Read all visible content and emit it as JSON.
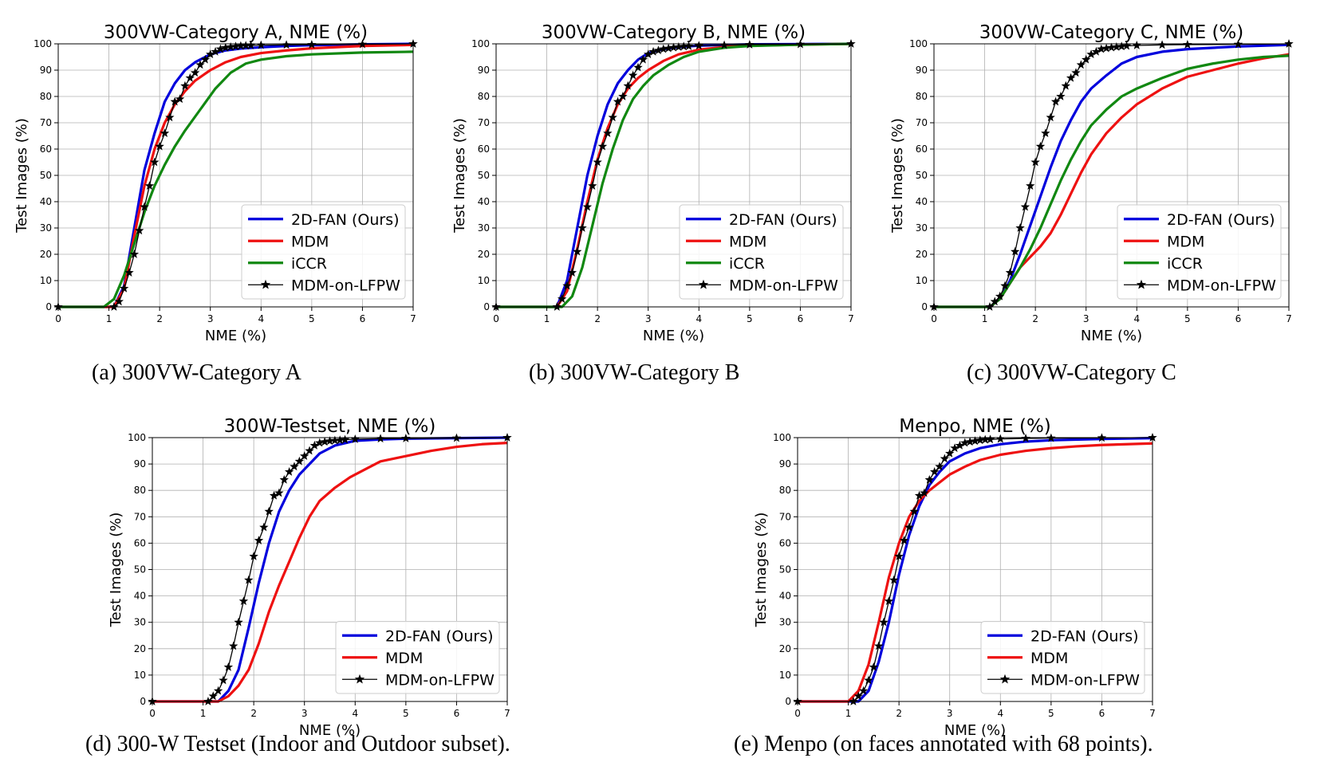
{
  "chart_data": [
    {
      "type": "line",
      "title": "300VW-Category A, NME (%)",
      "xlabel": "NME (%)",
      "ylabel": "Test Images (%)",
      "xlim": [
        0,
        7
      ],
      "ylim": [
        0,
        100
      ],
      "xticks": [
        0,
        1,
        2,
        3,
        4,
        5,
        6,
        7
      ],
      "yticks": [
        0,
        10,
        20,
        30,
        40,
        50,
        60,
        70,
        80,
        90,
        100
      ],
      "grid": true,
      "legend": "lower-right",
      "caption": "(a) 300VW-Category A",
      "series": [
        {
          "name": "2D-FAN (Ours)",
          "color": "#0000dd",
          "marker": "none",
          "x": [
            0,
            1.1,
            1.3,
            1.5,
            1.7,
            1.9,
            2.1,
            2.3,
            2.5,
            2.7,
            3.0,
            3.3,
            3.6,
            4.0,
            4.5,
            5.0,
            6.0,
            7.0
          ],
          "y": [
            0,
            0,
            8,
            30,
            52,
            66,
            78,
            85,
            90,
            93,
            96,
            97.5,
            98.2,
            98.7,
            99.2,
            99.5,
            99.8,
            100
          ]
        },
        {
          "name": "MDM",
          "color": "#ee1111",
          "marker": "none",
          "x": [
            0,
            1.1,
            1.3,
            1.5,
            1.7,
            1.9,
            2.1,
            2.3,
            2.5,
            2.7,
            3.0,
            3.3,
            3.6,
            4.0,
            4.5,
            5.0,
            6.0,
            7.0
          ],
          "y": [
            0,
            0,
            7,
            27,
            46,
            60,
            70,
            77,
            82,
            86,
            90,
            93,
            95,
            96.5,
            97.5,
            98.3,
            99.2,
            99.6
          ]
        },
        {
          "name": "iCCR",
          "color": "#118811",
          "marker": "none",
          "x": [
            0,
            0.9,
            1.1,
            1.3,
            1.5,
            1.7,
            1.9,
            2.1,
            2.3,
            2.5,
            2.8,
            3.1,
            3.4,
            3.7,
            4.0,
            4.5,
            5.0,
            6.0,
            7.0
          ],
          "y": [
            0,
            0,
            3,
            12,
            24,
            36,
            46,
            54,
            61,
            67,
            75,
            83,
            89,
            92.5,
            94,
            95.3,
            96,
            96.7,
            97
          ]
        },
        {
          "name": "MDM-on-LFPW",
          "color": "#000000",
          "marker": "star",
          "x": [
            0,
            1.1,
            1.2,
            1.3,
            1.4,
            1.5,
            1.6,
            1.7,
            1.8,
            1.9,
            2.0,
            2.1,
            2.2,
            2.3,
            2.4,
            2.5,
            2.6,
            2.7,
            2.8,
            2.9,
            3.0,
            3.1,
            3.2,
            3.3,
            3.4,
            3.5,
            3.6,
            3.7,
            3.8,
            4.0,
            4.5,
            5.0,
            6.0,
            7.0
          ],
          "y": [
            0,
            0,
            2,
            7,
            13,
            20,
            29,
            38,
            46,
            55,
            61,
            66,
            72,
            78,
            79,
            84,
            87,
            89,
            92,
            94,
            96,
            97,
            98,
            98.5,
            98.8,
            99,
            99.2,
            99.3,
            99.4,
            99.5,
            99.6,
            99.7,
            99.8,
            100
          ]
        }
      ]
    },
    {
      "type": "line",
      "title": "300VW-Category B, NME (%)",
      "xlabel": "NME (%)",
      "ylabel": "Test Images (%)",
      "xlim": [
        0,
        7
      ],
      "ylim": [
        0,
        100
      ],
      "xticks": [
        0,
        1,
        2,
        3,
        4,
        5,
        6,
        7
      ],
      "yticks": [
        0,
        10,
        20,
        30,
        40,
        50,
        60,
        70,
        80,
        90,
        100
      ],
      "grid": true,
      "legend": "lower-right",
      "caption": "(b) 300VW-Category B",
      "series": [
        {
          "name": "2D-FAN (Ours)",
          "color": "#0000dd",
          "marker": "none",
          "x": [
            0,
            1.2,
            1.4,
            1.6,
            1.8,
            2.0,
            2.2,
            2.4,
            2.6,
            2.8,
            3.0,
            3.3,
            3.6,
            4.0,
            4.5,
            5.0,
            6.0,
            7.0
          ],
          "y": [
            0,
            0,
            10,
            30,
            50,
            65,
            77,
            85,
            90,
            94,
            96.5,
            98,
            98.8,
            99.3,
            99.6,
            99.8,
            99.9,
            100
          ]
        },
        {
          "name": "MDM",
          "color": "#ee1111",
          "marker": "none",
          "x": [
            0,
            1.2,
            1.4,
            1.6,
            1.8,
            2.0,
            2.2,
            2.4,
            2.6,
            2.8,
            3.0,
            3.3,
            3.6,
            4.0,
            4.5,
            5.0,
            6.0,
            7.0
          ],
          "y": [
            0,
            0,
            6,
            22,
            40,
            56,
            68,
            77,
            83,
            87,
            90,
            93.5,
            96,
            97.8,
            98.8,
            99.3,
            99.7,
            100
          ]
        },
        {
          "name": "iCCR",
          "color": "#118811",
          "marker": "none",
          "x": [
            0,
            1.3,
            1.5,
            1.7,
            1.9,
            2.1,
            2.3,
            2.5,
            2.7,
            2.9,
            3.1,
            3.4,
            3.7,
            4.0,
            4.5,
            5.0,
            6.0,
            7.0
          ],
          "y": [
            0,
            0,
            4,
            15,
            31,
            47,
            60,
            71,
            79,
            84,
            88,
            92,
            95,
            97,
            98.5,
            99.2,
            99.7,
            100
          ]
        },
        {
          "name": "MDM-on-LFPW",
          "color": "#000000",
          "marker": "star",
          "x": [
            0,
            1.2,
            1.3,
            1.4,
            1.5,
            1.6,
            1.7,
            1.8,
            1.9,
            2.0,
            2.1,
            2.2,
            2.3,
            2.4,
            2.5,
            2.6,
            2.7,
            2.8,
            2.9,
            3.0,
            3.1,
            3.2,
            3.3,
            3.4,
            3.5,
            3.6,
            3.7,
            3.8,
            4.0,
            4.5,
            5.0,
            6.0,
            7.0
          ],
          "y": [
            0,
            0,
            3,
            8,
            13,
            21,
            30,
            38,
            46,
            55,
            61,
            66,
            72,
            78,
            80,
            84,
            88,
            91,
            94,
            96,
            97,
            97.5,
            98,
            98.3,
            98.6,
            98.8,
            99,
            99.1,
            99.3,
            99.5,
            99.7,
            99.8,
            100
          ]
        }
      ]
    },
    {
      "type": "line",
      "title": "300VW-Category C, NME (%)",
      "xlabel": "NME (%)",
      "ylabel": "Test Images (%)",
      "xlim": [
        0,
        7
      ],
      "ylim": [
        0,
        100
      ],
      "xticks": [
        0,
        1,
        2,
        3,
        4,
        5,
        6,
        7
      ],
      "yticks": [
        0,
        10,
        20,
        30,
        40,
        50,
        60,
        70,
        80,
        90,
        100
      ],
      "grid": true,
      "legend": "lower-right",
      "caption": "(c) 300VW-Category C",
      "series": [
        {
          "name": "2D-FAN (Ours)",
          "color": "#0000dd",
          "marker": "none",
          "x": [
            0,
            1.1,
            1.3,
            1.5,
            1.7,
            1.9,
            2.1,
            2.3,
            2.5,
            2.7,
            2.9,
            3.1,
            3.4,
            3.7,
            4.0,
            4.5,
            5.0,
            6.0,
            7.0
          ],
          "y": [
            0,
            0,
            3,
            10,
            20,
            31,
            42,
            53,
            63,
            71,
            78,
            83,
            88,
            92.5,
            95,
            97,
            98,
            99,
            99.6
          ]
        },
        {
          "name": "MDM",
          "color": "#ee1111",
          "marker": "none",
          "x": [
            0,
            1.1,
            1.3,
            1.5,
            1.7,
            1.9,
            2.1,
            2.3,
            2.5,
            2.7,
            2.9,
            3.1,
            3.4,
            3.7,
            4.0,
            4.5,
            5.0,
            5.5,
            6.0,
            6.5,
            7.0
          ],
          "y": [
            0,
            0,
            3,
            9,
            15,
            19,
            23,
            28,
            35,
            43,
            51,
            58,
            66,
            72,
            77,
            83,
            87.5,
            90,
            92.5,
            94.5,
            96
          ]
        },
        {
          "name": "iCCR",
          "color": "#118811",
          "marker": "none",
          "x": [
            0,
            1.1,
            1.3,
            1.5,
            1.7,
            1.9,
            2.1,
            2.3,
            2.5,
            2.7,
            2.9,
            3.1,
            3.4,
            3.7,
            4.0,
            4.5,
            5.0,
            5.5,
            6.0,
            6.5,
            7.0
          ],
          "y": [
            0,
            0,
            3,
            9,
            15,
            22,
            30,
            39,
            48,
            56,
            63,
            69,
            75,
            80,
            83,
            87,
            90.5,
            92.5,
            94,
            95,
            95.5
          ]
        },
        {
          "name": "MDM-on-LFPW",
          "color": "#000000",
          "marker": "star",
          "x": [
            0,
            1.1,
            1.2,
            1.3,
            1.4,
            1.5,
            1.6,
            1.7,
            1.8,
            1.9,
            2.0,
            2.1,
            2.2,
            2.3,
            2.4,
            2.5,
            2.6,
            2.7,
            2.8,
            2.9,
            3.0,
            3.1,
            3.2,
            3.3,
            3.4,
            3.5,
            3.6,
            3.7,
            3.8,
            4.0,
            4.5,
            5.0,
            6.0,
            7.0
          ],
          "y": [
            0,
            0,
            2,
            4,
            8,
            13,
            21,
            30,
            38,
            46,
            55,
            61,
            66,
            72,
            78,
            80,
            84,
            87,
            89,
            92,
            94,
            96,
            97,
            98,
            98.3,
            98.6,
            98.8,
            99,
            99.2,
            99.4,
            99.6,
            99.7,
            99.8,
            100
          ]
        }
      ]
    },
    {
      "type": "line",
      "title": "300W-Testset, NME (%)",
      "xlabel": "NME (%)",
      "ylabel": "Test Images (%)",
      "xlim": [
        0,
        7
      ],
      "ylim": [
        0,
        100
      ],
      "xticks": [
        0,
        1,
        2,
        3,
        4,
        5,
        6,
        7
      ],
      "yticks": [
        0,
        10,
        20,
        30,
        40,
        50,
        60,
        70,
        80,
        90,
        100
      ],
      "grid": true,
      "legend": "lower-right",
      "caption": "(d) 300-W Testset (Indoor and Outdoor subset).",
      "series": [
        {
          "name": "2D-FAN (Ours)",
          "color": "#0000dd",
          "marker": "none",
          "x": [
            0,
            1.3,
            1.5,
            1.7,
            1.9,
            2.1,
            2.3,
            2.5,
            2.7,
            2.9,
            3.1,
            3.3,
            3.6,
            4.0,
            4.5,
            5.0,
            6.0,
            7.0
          ],
          "y": [
            0,
            0,
            4,
            12,
            28,
            45,
            60,
            72,
            80,
            86,
            90,
            94,
            97,
            98.8,
            99.3,
            99.6,
            99.8,
            100
          ]
        },
        {
          "name": "MDM",
          "color": "#ee1111",
          "marker": "none",
          "x": [
            0,
            1.3,
            1.5,
            1.7,
            1.9,
            2.1,
            2.3,
            2.5,
            2.7,
            2.9,
            3.1,
            3.3,
            3.6,
            3.9,
            4.2,
            4.5,
            5.0,
            5.5,
            6.0,
            6.5,
            7.0
          ],
          "y": [
            0,
            0,
            2,
            6,
            12,
            22,
            34,
            44,
            53,
            62,
            70,
            76,
            81,
            85,
            88,
            91,
            93,
            95,
            96.5,
            97.5,
            98
          ]
        },
        {
          "name": "MDM-on-LFPW",
          "color": "#000000",
          "marker": "star",
          "x": [
            0,
            1.1,
            1.2,
            1.3,
            1.4,
            1.5,
            1.6,
            1.7,
            1.8,
            1.9,
            2.0,
            2.1,
            2.2,
            2.3,
            2.4,
            2.5,
            2.6,
            2.7,
            2.8,
            2.9,
            3.0,
            3.1,
            3.2,
            3.3,
            3.4,
            3.5,
            3.6,
            3.7,
            3.8,
            4.0,
            4.5,
            5.0,
            6.0,
            7.0
          ],
          "y": [
            0,
            0,
            2,
            4,
            8,
            13,
            21,
            30,
            38,
            46,
            55,
            61,
            66,
            72,
            78,
            79,
            84,
            87,
            89,
            91,
            93,
            95,
            97,
            98,
            98.4,
            98.7,
            98.9,
            99,
            99.2,
            99.4,
            99.6,
            99.7,
            99.8,
            100
          ]
        }
      ]
    },
    {
      "type": "line",
      "title": "Menpo, NME (%)",
      "xlabel": "NME (%)",
      "ylabel": "Test Images (%)",
      "xlim": [
        0,
        7
      ],
      "ylim": [
        0,
        100
      ],
      "xticks": [
        0,
        1,
        2,
        3,
        4,
        5,
        6,
        7
      ],
      "yticks": [
        0,
        10,
        20,
        30,
        40,
        50,
        60,
        70,
        80,
        90,
        100
      ],
      "grid": true,
      "legend": "lower-right",
      "caption": "(e) Menpo (on faces annotated with 68 points).",
      "series": [
        {
          "name": "2D-FAN (Ours)",
          "color": "#0000dd",
          "marker": "none",
          "x": [
            0,
            1.2,
            1.4,
            1.6,
            1.8,
            2.0,
            2.2,
            2.4,
            2.6,
            2.8,
            3.0,
            3.3,
            3.6,
            4.0,
            4.5,
            5.0,
            6.0,
            7.0
          ],
          "y": [
            0,
            0,
            4,
            15,
            30,
            48,
            63,
            74,
            82,
            87,
            91,
            94,
            96,
            97.5,
            98.5,
            99,
            99.5,
            99.8
          ]
        },
        {
          "name": "MDM",
          "color": "#ee1111",
          "marker": "none",
          "x": [
            0,
            1.0,
            1.2,
            1.4,
            1.6,
            1.8,
            2.0,
            2.2,
            2.4,
            2.6,
            2.8,
            3.0,
            3.3,
            3.6,
            4.0,
            4.5,
            5.0,
            5.5,
            6.0,
            7.0
          ],
          "y": [
            0,
            0,
            4,
            14,
            30,
            47,
            60,
            70,
            76,
            80,
            83,
            86,
            89,
            91.5,
            93.5,
            95,
            96,
            96.7,
            97.2,
            97.8
          ]
        },
        {
          "name": "MDM-on-LFPW",
          "color": "#000000",
          "marker": "star",
          "x": [
            0,
            1.1,
            1.2,
            1.3,
            1.4,
            1.5,
            1.6,
            1.7,
            1.8,
            1.9,
            2.0,
            2.1,
            2.2,
            2.3,
            2.4,
            2.5,
            2.6,
            2.7,
            2.8,
            2.9,
            3.0,
            3.1,
            3.2,
            3.3,
            3.4,
            3.5,
            3.6,
            3.7,
            3.8,
            4.0,
            4.5,
            5.0,
            6.0,
            7.0
          ],
          "y": [
            0,
            0,
            2,
            4,
            8,
            13,
            21,
            30,
            38,
            46,
            55,
            61,
            66,
            72,
            78,
            79,
            84,
            87,
            89,
            92,
            94,
            96,
            97,
            98,
            98.4,
            98.7,
            99,
            99.2,
            99.3,
            99.5,
            99.7,
            99.8,
            99.9,
            100
          ]
        }
      ]
    }
  ]
}
